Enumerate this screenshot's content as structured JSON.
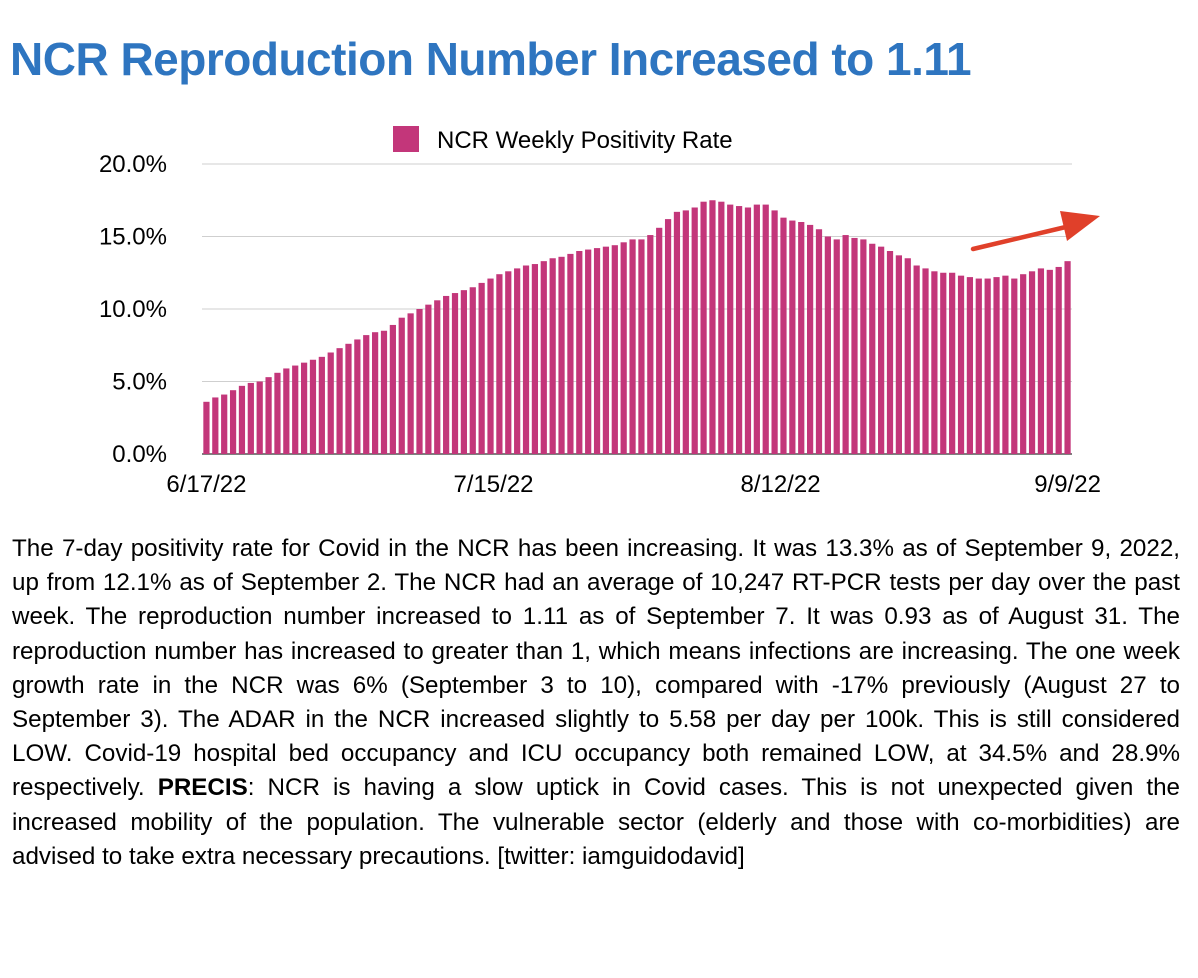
{
  "title": "NCR Reproduction Number Increased to 1.11",
  "chart_data": {
    "type": "bar",
    "title": "",
    "xlabel": "",
    "ylabel": "",
    "legend": "top",
    "grid": true,
    "ylim": [
      0,
      20
    ],
    "y_ticks": [
      "0.0%",
      "5.0%",
      "10.0%",
      "15.0%",
      "20.0%"
    ],
    "x_tick_labels": [
      "6/17/22",
      "7/15/22",
      "8/12/22",
      "9/9/22"
    ],
    "x_start": "6/17/22",
    "x_end": "9/9/22",
    "bar_color": "#C3367A",
    "arrow_color": "#E0402A",
    "series": [
      {
        "name": "NCR Weekly Positivity Rate",
        "values": [
          3.6,
          3.9,
          4.1,
          4.4,
          4.7,
          4.9,
          5.0,
          5.3,
          5.6,
          5.9,
          6.1,
          6.3,
          6.5,
          6.7,
          7.0,
          7.3,
          7.6,
          7.9,
          8.2,
          8.4,
          8.5,
          8.9,
          9.4,
          9.7,
          10.0,
          10.3,
          10.6,
          10.9,
          11.1,
          11.3,
          11.5,
          11.8,
          12.1,
          12.4,
          12.6,
          12.8,
          13.0,
          13.1,
          13.3,
          13.5,
          13.6,
          13.8,
          14.0,
          14.1,
          14.2,
          14.3,
          14.4,
          14.6,
          14.8,
          14.8,
          15.1,
          15.6,
          16.2,
          16.7,
          16.8,
          17.0,
          17.4,
          17.5,
          17.4,
          17.2,
          17.1,
          17.0,
          17.2,
          17.2,
          16.8,
          16.3,
          16.1,
          16.0,
          15.8,
          15.5,
          15.0,
          14.8,
          15.1,
          14.9,
          14.8,
          14.5,
          14.3,
          14.0,
          13.7,
          13.5,
          13.0,
          12.8,
          12.6,
          12.5,
          12.5,
          12.3,
          12.2,
          12.1,
          12.1,
          12.2,
          12.3,
          12.1,
          12.4,
          12.6,
          12.8,
          12.7,
          12.9,
          13.3
        ]
      }
    ]
  },
  "body": {
    "p1": "The 7-day positivity rate for Covid in the NCR has been increasing. It was 13.3% as of September 9, 2022, up from 12.1% as of September 2. The NCR had an average of 10,247 RT-PCR tests per day over the past week. The reproduction number increased to 1.11 as of September 7. It was 0.93 as of August 31. The reproduction number has increased to greater than 1, which means infections are increasing. The one week growth rate in the NCR was 6% (September 3 to 10), compared with -17% previously (August 27 to September 3). The ADAR in the NCR increased slightly to 5.58 per day per 100k. This is still considered LOW. Covid-19 hospital bed occupancy and ICU occupancy both remained LOW, at 34.5% and 28.9% respectively. ",
    "bold": "PRECIS",
    "p2": ": NCR is having a slow uptick in Covid cases. This is not unexpected given the increased mobility of the population. The vulnerable sector (elderly and those with co-morbidities) are advised to take extra necessary precautions. [twitter: iamguidodavid]"
  }
}
